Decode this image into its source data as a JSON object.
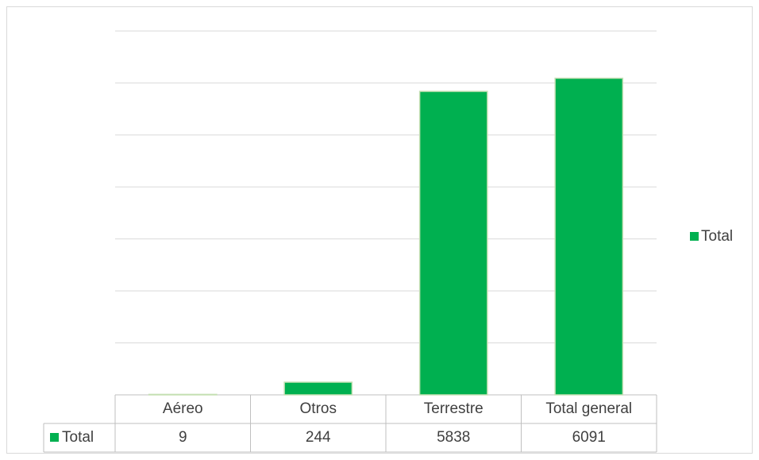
{
  "chart_data": {
    "type": "bar",
    "categories": [
      "Aéreo",
      "Otros",
      "Terrestre",
      "Total general"
    ],
    "series": [
      {
        "name": "Total",
        "color": "#00b050",
        "values": [
          9,
          244,
          5838,
          6091
        ]
      }
    ],
    "ylim": [
      0,
      7000
    ],
    "yticks": [
      0,
      1000,
      2000,
      3000,
      4000,
      5000,
      6000,
      7000
    ],
    "grid": true,
    "legend": "right",
    "data_table": true
  }
}
